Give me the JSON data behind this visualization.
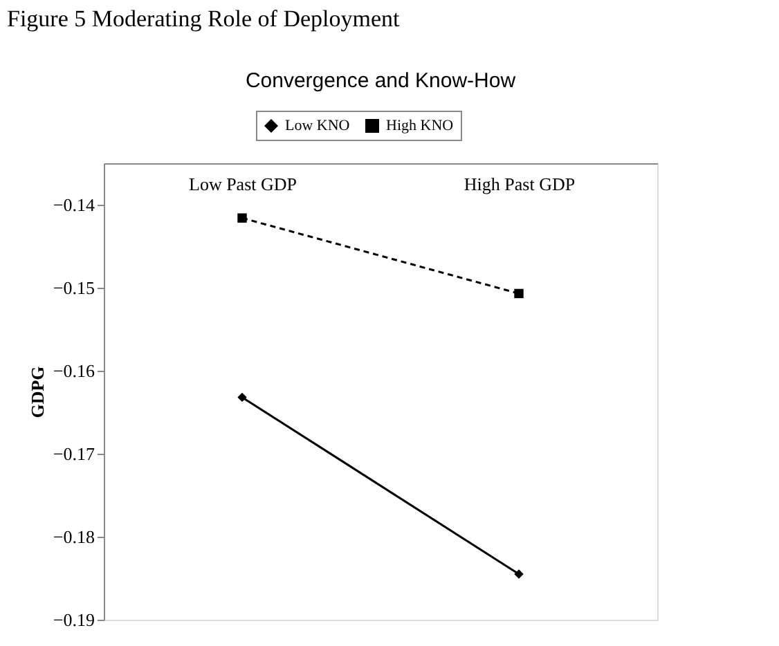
{
  "chart_data": {
    "type": "line",
    "title": "Convergence and Know-How",
    "ylabel": "GDPG",
    "annotations": [
      "Figure 5 Moderating Role of Deployment"
    ],
    "categories": [
      "Low Past GDP",
      "High Past GDP"
    ],
    "series": [
      {
        "name": "Low KNO",
        "color": "#000000",
        "marker": "diamond",
        "line_style": "solid",
        "values": [
          -0.1632,
          -0.1845
        ]
      },
      {
        "name": "High KNO",
        "color": "#000000",
        "marker": "square",
        "line_style": "dashed",
        "values": [
          -0.1416,
          -0.1507
        ]
      }
    ],
    "ylim": [
      -0.19,
      -0.135
    ],
    "yticks": [
      -0.19,
      -0.18,
      -0.17,
      -0.16,
      -0.15,
      -0.14
    ],
    "grid": false,
    "legend": "top"
  }
}
